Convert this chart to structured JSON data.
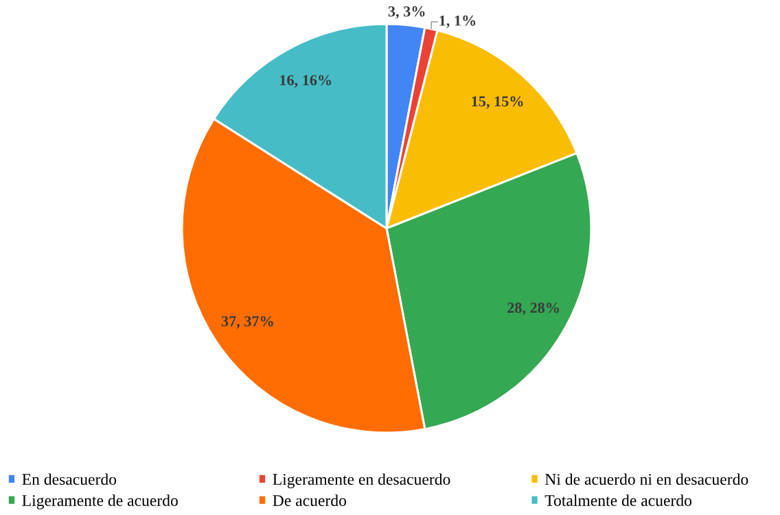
{
  "chart_data": {
    "type": "pie",
    "categories": [
      "En desacuerdo",
      "Ligeramente en desacuerdo",
      "Ni de acuerdo ni en desacuerdo",
      "Ligeramente de acuerdo",
      "De acuerdo",
      "Totalmente de acuerdo"
    ],
    "values": [
      3,
      1,
      15,
      28,
      37,
      16
    ],
    "colors": [
      "#4285f4",
      "#ea4335",
      "#fbbc04",
      "#34a853",
      "#ff6d01",
      "#46bdc6"
    ],
    "value_labels": [
      "3, 3%",
      "1, 1%",
      "15, 15%",
      "28, 28%",
      "37, 37%",
      "16, 16%"
    ],
    "legend": "bottom"
  }
}
